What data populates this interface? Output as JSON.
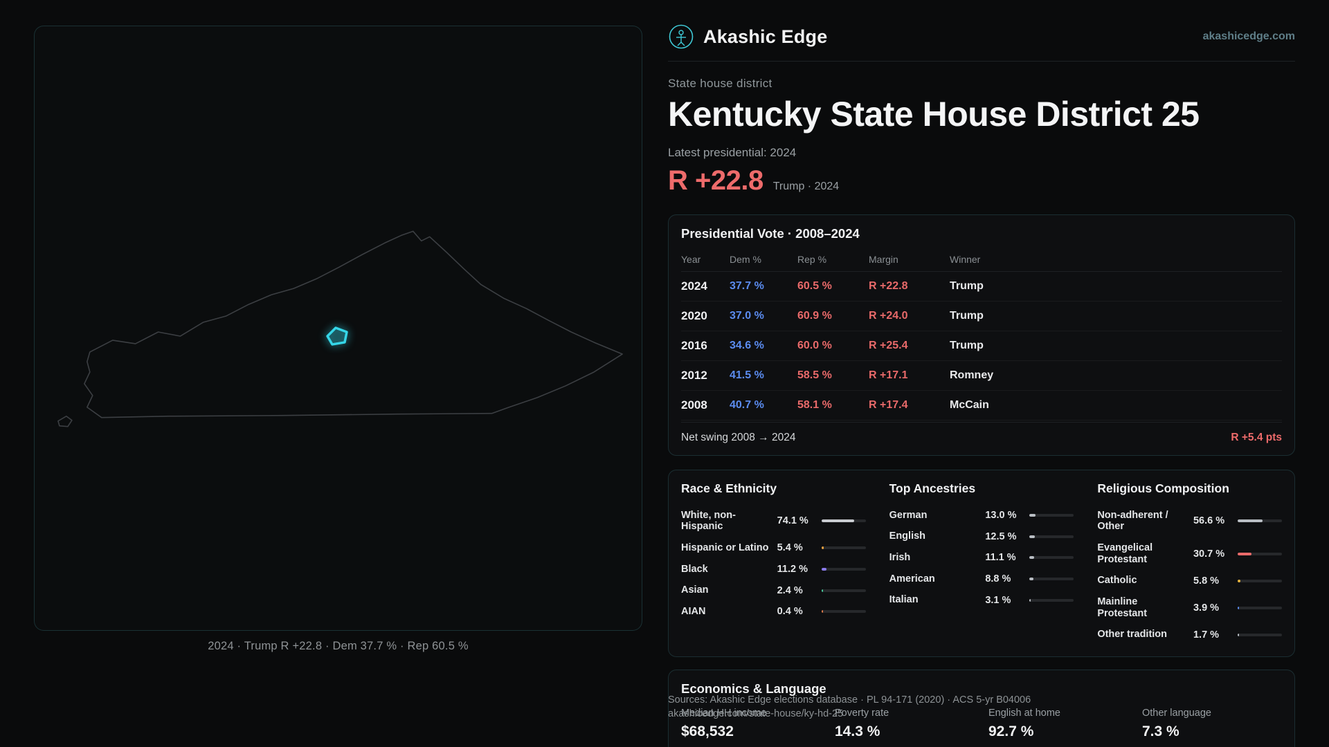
{
  "brand": {
    "name": "Akashic Edge",
    "domain": "akashicedge.com"
  },
  "header": {
    "kicker": "State house district",
    "title": "Kentucky State House District 25",
    "latest_label": "Latest presidential: 2024",
    "headline_margin": "R +22.8",
    "headline_context": "Trump · 2024"
  },
  "map": {
    "caption": "2024 · Trump R +22.8 · Dem 37.7 % · Rep 60.5 %",
    "accent": "#35d6e8"
  },
  "vote_table": {
    "title": "Presidential Vote · 2008–2024",
    "columns": [
      "Year",
      "Dem %",
      "Rep %",
      "Margin",
      "Winner"
    ],
    "rows": [
      {
        "year": "2024",
        "dem": "37.7 %",
        "rep": "60.5 %",
        "margin": "R +22.8",
        "winner": "Trump"
      },
      {
        "year": "2020",
        "dem": "37.0 %",
        "rep": "60.9 %",
        "margin": "R +24.0",
        "winner": "Trump"
      },
      {
        "year": "2016",
        "dem": "34.6 %",
        "rep": "60.0 %",
        "margin": "R +25.4",
        "winner": "Trump"
      },
      {
        "year": "2012",
        "dem": "41.5 %",
        "rep": "58.5 %",
        "margin": "R +17.1",
        "winner": "Romney"
      },
      {
        "year": "2008",
        "dem": "40.7 %",
        "rep": "58.1 %",
        "margin": "R +17.4",
        "winner": "McCain"
      }
    ],
    "footer_label": "Net swing 2008 → 2024",
    "footer_value": "R +5.4 pts"
  },
  "demographics": {
    "race": {
      "title": "Race & Ethnicity",
      "rows": [
        {
          "label": "White, non-Hispanic",
          "value": "74.1 %",
          "pct": 74.1,
          "color": "#c9ccd1"
        },
        {
          "label": "Hispanic or Latino",
          "value": "5.4 %",
          "pct": 5.4,
          "color": "#eda23f"
        },
        {
          "label": "Black",
          "value": "11.2 %",
          "pct": 11.2,
          "color": "#8a7bec"
        },
        {
          "label": "Asian",
          "value": "2.4 %",
          "pct": 2.4,
          "color": "#46c99a"
        },
        {
          "label": "AIAN",
          "value": "0.4 %",
          "pct": 0.4,
          "color": "#e07a4a"
        }
      ]
    },
    "ancestries": {
      "title": "Top Ancestries",
      "rows": [
        {
          "label": "German",
          "value": "13.0 %",
          "pct": 13.0,
          "color": "#b9bec4"
        },
        {
          "label": "English",
          "value": "12.5 %",
          "pct": 12.5,
          "color": "#b9bec4"
        },
        {
          "label": "Irish",
          "value": "11.1 %",
          "pct": 11.1,
          "color": "#b9bec4"
        },
        {
          "label": "American",
          "value": "8.8 %",
          "pct": 8.8,
          "color": "#b9bec4"
        },
        {
          "label": "Italian",
          "value": "3.1 %",
          "pct": 3.1,
          "color": "#b9bec4"
        }
      ]
    },
    "religion": {
      "title": "Religious Composition",
      "rows": [
        {
          "label": "Non-adherent / Other",
          "value": "56.6 %",
          "pct": 56.6,
          "color": "#b9bec4"
        },
        {
          "label": "Evangelical Protestant",
          "value": "30.7 %",
          "pct": 30.7,
          "color": "#e96a6a"
        },
        {
          "label": "Catholic",
          "value": "5.8 %",
          "pct": 5.8,
          "color": "#e6b33c"
        },
        {
          "label": "Mainline Protestant",
          "value": "3.9 %",
          "pct": 3.9,
          "color": "#5b8df0"
        },
        {
          "label": "Other tradition",
          "value": "1.7 %",
          "pct": 1.7,
          "color": "#b9bec4"
        }
      ]
    }
  },
  "economics": {
    "title": "Economics & Language",
    "stats": [
      {
        "label": "Median HH income",
        "value": "$68,532"
      },
      {
        "label": "Poverty rate",
        "value": "14.3 %"
      },
      {
        "label": "English at home",
        "value": "92.7 %"
      },
      {
        "label": "Other language",
        "value": "7.3 %"
      }
    ]
  },
  "footer": {
    "line1": "Sources: Akashic Edge elections database · PL 94-171 (2020) · ACS 5-yr B04006",
    "line2": "akashicedge.com/state-house/ky-hd-25"
  },
  "colors": {
    "dem": "#5b8cf0",
    "rep": "#e96a6a",
    "accent": "#35d6e8"
  }
}
